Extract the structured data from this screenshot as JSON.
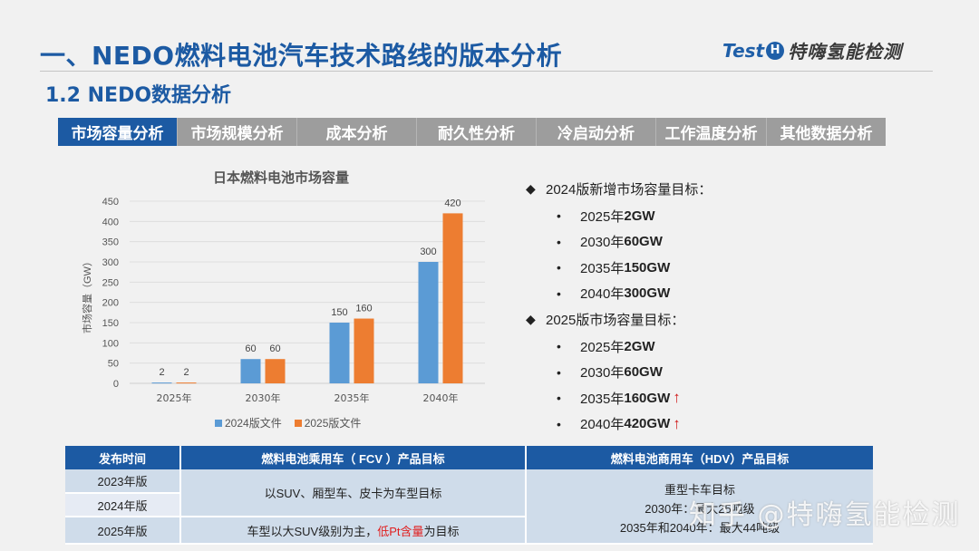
{
  "header": {
    "title": "一、NEDO燃料电池汽车技术路线的版本分析",
    "subtitle": "1.2 NEDO数据分析",
    "logo_text_en": "Test",
    "logo_badge": "H",
    "logo_text_cn": "特嗨氢能检测"
  },
  "tabs": [
    {
      "label": "市场容量分析",
      "active": true
    },
    {
      "label": "市场规模分析",
      "active": false
    },
    {
      "label": "成本分析",
      "active": false
    },
    {
      "label": "耐久性分析",
      "active": false
    },
    {
      "label": "冷启动分析",
      "active": false
    },
    {
      "label": "工作温度分析",
      "active": false
    },
    {
      "label": "其他数据分析",
      "active": false
    }
  ],
  "chart_data": {
    "type": "bar",
    "title": "日本燃料电池市场容量",
    "xlabel": "",
    "ylabel": "市场容量（GW）",
    "categories": [
      "2025年",
      "2030年",
      "2035年",
      "2040年"
    ],
    "series": [
      {
        "name": "2024版文件",
        "values": [
          2,
          60,
          150,
          300
        ],
        "color": "#5b9bd5"
      },
      {
        "name": "2025版文件",
        "values": [
          2,
          60,
          160,
          420
        ],
        "color": "#ed7d31"
      }
    ],
    "ylim": [
      0,
      450
    ],
    "yticks": [
      0,
      50,
      100,
      150,
      200,
      250,
      300,
      350,
      400,
      450
    ],
    "grid": true,
    "legend_position": "bottom",
    "data_labels": true
  },
  "targets": {
    "group_2024": {
      "heading": "2024版新增市场容量目标：",
      "items": [
        {
          "year": "2025年",
          "value": "2GW",
          "up": false
        },
        {
          "year": "2030年",
          "value": "60GW",
          "up": false
        },
        {
          "year": "2035年",
          "value": "150GW",
          "up": false
        },
        {
          "year": "2040年",
          "value": "300GW",
          "up": false
        }
      ]
    },
    "group_2025": {
      "heading": "2025版市场容量目标：",
      "items": [
        {
          "year": "2025年",
          "value": "2GW",
          "up": false
        },
        {
          "year": "2030年",
          "value": "60GW",
          "up": false
        },
        {
          "year": "2035年",
          "value": "160GW",
          "up": true
        },
        {
          "year": "2040年",
          "value": "420GW",
          "up": true
        }
      ]
    },
    "up_arrow": "↑",
    "diamond": "◆",
    "dot": "•"
  },
  "table": {
    "headers": [
      "发布时间",
      "燃料电池乘用车（ FCV ）产品目标",
      "燃料电池商用车（HDV）产品目标"
    ],
    "rows": {
      "r2023": "2023年版",
      "r2024": "2024年版",
      "r2025": "2025年版"
    },
    "fcv_2023_2024": "以SUV、厢型车、皮卡为车型目标",
    "fcv_2025_pre": "车型以大SUV级别为主，",
    "fcv_2025_red": "低Pt含量",
    "fcv_2025_post": "为目标",
    "hdv_line1": "重型卡车目标",
    "hdv_line2": "2030年：最大25吨级",
    "hdv_line3": "2035年和2040年：最大44吨级"
  },
  "watermark": "知乎 @特嗨氢能检测"
}
